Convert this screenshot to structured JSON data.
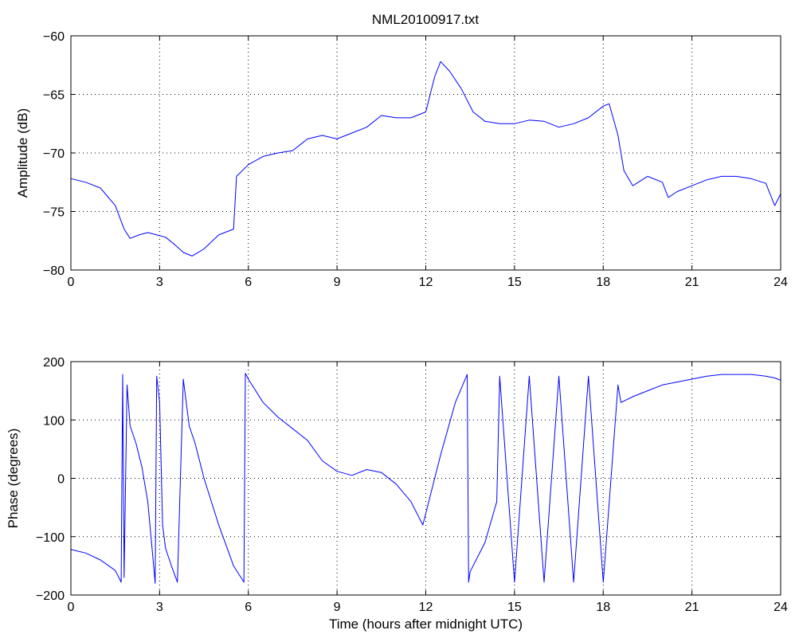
{
  "window": {
    "title": "NML20100917.txt"
  },
  "chart_data": [
    {
      "type": "line",
      "title": "NML20100917.txt",
      "xlabel": "",
      "ylabel": "Amplitude (dB)",
      "xlim": [
        0,
        24
      ],
      "ylim": [
        -80,
        -60
      ],
      "xticks": [
        0,
        3,
        6,
        9,
        12,
        15,
        18,
        21,
        24
      ],
      "yticks": [
        -80,
        -75,
        -70,
        -65,
        -60
      ],
      "grid": true,
      "color": "#0000ff",
      "series": [
        {
          "x": [
            0,
            0.5,
            1.0,
            1.5,
            1.8,
            2.0,
            2.3,
            2.6,
            2.9,
            3.2,
            3.5,
            3.8,
            4.1,
            4.5,
            5.0,
            5.5,
            5.6,
            6.0,
            6.5,
            7.0,
            7.5,
            8.0,
            8.5,
            9.0,
            9.5,
            10.0,
            10.5,
            11.0,
            11.5,
            12.0,
            12.3,
            12.5,
            12.8,
            13.2,
            13.6,
            14.0,
            14.5,
            15.0,
            15.5,
            16.0,
            16.5,
            17.0,
            17.5,
            18.0,
            18.2,
            18.5,
            18.7,
            19.0,
            19.5,
            20.0,
            20.2,
            20.5,
            21.0,
            21.5,
            22.0,
            22.5,
            23.0,
            23.5,
            23.8,
            24.0
          ],
          "values": [
            -72.2,
            -72.5,
            -73.0,
            -74.5,
            -76.5,
            -77.3,
            -77.0,
            -76.8,
            -77.0,
            -77.2,
            -77.8,
            -78.5,
            -78.8,
            -78.2,
            -77.0,
            -76.5,
            -72.0,
            -71.0,
            -70.3,
            -70.0,
            -69.8,
            -68.8,
            -68.5,
            -68.8,
            -68.3,
            -67.8,
            -66.8,
            -67.0,
            -67.0,
            -66.5,
            -63.5,
            -62.2,
            -63.0,
            -64.5,
            -66.5,
            -67.3,
            -67.5,
            -67.5,
            -67.2,
            -67.3,
            -67.8,
            -67.5,
            -67.0,
            -66.0,
            -65.8,
            -68.5,
            -71.5,
            -72.8,
            -72.0,
            -72.5,
            -73.8,
            -73.3,
            -72.8,
            -72.3,
            -72.0,
            -72.0,
            -72.2,
            -72.6,
            -74.5,
            -73.5
          ]
        }
      ]
    },
    {
      "type": "line",
      "title": "",
      "xlabel": "Time (hours after midnight UTC)",
      "ylabel": "Phase (degrees)",
      "xlim": [
        0,
        24
      ],
      "ylim": [
        -200,
        200
      ],
      "xticks": [
        0,
        3,
        6,
        9,
        12,
        15,
        18,
        21,
        24
      ],
      "yticks": [
        -200,
        -100,
        0,
        100,
        200
      ],
      "grid": true,
      "color": "#0000ff",
      "series": [
        {
          "x": [
            0,
            0.5,
            1.0,
            1.5,
            1.7,
            1.75,
            1.8,
            1.9,
            2.0,
            2.2,
            2.4,
            2.6,
            2.8,
            2.85,
            2.9,
            3.0,
            3.1,
            3.2,
            3.4,
            3.6,
            3.8,
            4.0,
            4.2,
            4.5,
            5.0,
            5.5,
            5.85,
            5.9,
            6.0,
            6.5,
            7.0,
            7.5,
            8.0,
            8.5,
            9.0,
            9.5,
            10.0,
            10.5,
            11.0,
            11.5,
            11.9,
            12.0,
            12.5,
            13.0,
            13.4,
            13.45,
            13.5,
            14.0,
            14.4,
            14.5,
            15.0,
            15.5,
            16.0,
            16.5,
            17.0,
            17.5,
            18.0,
            18.5,
            18.6,
            19.0,
            19.5,
            20.0,
            20.5,
            21.0,
            21.5,
            22.0,
            22.5,
            23.0,
            23.5,
            23.8,
            24.0
          ],
          "values": [
            -122,
            -128,
            -140,
            -158,
            -178,
            178,
            -170,
            160,
            90,
            60,
            20,
            -40,
            -150,
            -180,
            175,
            130,
            -80,
            -120,
            -150,
            -178,
            170,
            90,
            60,
            0,
            -80,
            -150,
            -178,
            180,
            170,
            130,
            105,
            85,
            65,
            30,
            12,
            5,
            15,
            10,
            -10,
            -40,
            -80,
            -60,
            40,
            130,
            178,
            -178,
            -160,
            -110,
            -40,
            175,
            -178,
            175,
            -178,
            175,
            -178,
            175,
            -178,
            160,
            130,
            140,
            150,
            160,
            165,
            170,
            175,
            178,
            178,
            178,
            175,
            172,
            168
          ]
        }
      ]
    }
  ]
}
